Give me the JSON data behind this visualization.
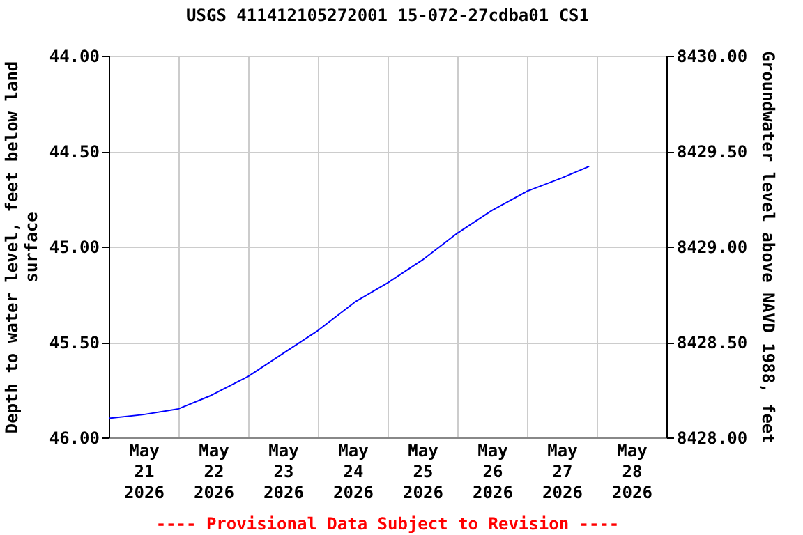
{
  "chart_data": {
    "type": "line",
    "title": "USGS 411412105272001 15-072-27cdba01 CS1",
    "ylabel": "Depth to water level, feet below land surface",
    "y2label": "Groundwater level above NAVD 1988, feet",
    "annotations": [
      "---- Provisional Data Subject to Revision ----"
    ],
    "xlim": [
      "2026-05-21T00:00",
      "2026-05-29T00:00"
    ],
    "xticks": [
      {
        "value": "2026-05-21T12:00",
        "label": "May\n21\n2026"
      },
      {
        "value": "2026-05-22T00:00",
        "label": null
      },
      {
        "value": "2026-05-22T12:00",
        "label": "May\n22\n2026"
      },
      {
        "value": "2026-05-23T00:00",
        "label": null
      },
      {
        "value": "2026-05-23T12:00",
        "label": "May\n23\n2026"
      },
      {
        "value": "2026-05-24T00:00",
        "label": null
      },
      {
        "value": "2026-05-24T12:00",
        "label": "May\n24\n2026"
      },
      {
        "value": "2026-05-25T00:00",
        "label": null
      },
      {
        "value": "2026-05-25T12:00",
        "label": "May\n25\n2026"
      },
      {
        "value": "2026-05-26T00:00",
        "label": null
      },
      {
        "value": "2026-05-26T12:00",
        "label": "May\n26\n2026"
      },
      {
        "value": "2026-05-27T00:00",
        "label": null
      },
      {
        "value": "2026-05-27T12:00",
        "label": "May\n27\n2026"
      },
      {
        "value": "2026-05-28T00:00",
        "label": null
      },
      {
        "value": "2026-05-28T12:00",
        "label": "May\n28\n2026"
      }
    ],
    "ylim": [
      46.0,
      44.0
    ],
    "yticks": [
      {
        "value": 44,
        "label": "44.00"
      },
      {
        "value": 44.5,
        "label": "44.50"
      },
      {
        "value": 45,
        "label": "45.00"
      },
      {
        "value": 45.5,
        "label": "45.50"
      },
      {
        "value": 46,
        "label": "46.00"
      }
    ],
    "y2lim": [
      8428,
      8430
    ],
    "y2ticks": [
      {
        "value": 8428,
        "label": "8428.00"
      },
      {
        "value": 8428.5,
        "label": "8428.50"
      },
      {
        "value": 8429,
        "label": "8429.00"
      },
      {
        "value": 8429.5,
        "label": "8429.50"
      },
      {
        "value": 8430,
        "label": "8430.00"
      }
    ],
    "grid": true,
    "series": [
      {
        "color": "#0000ff",
        "x": [
          "2026-05-21T00:00",
          "2026-05-21T12:00",
          "2026-05-22T00:00",
          "2026-05-22T11:12",
          "2026-05-23T00:00",
          "2026-05-23T12:00",
          "2026-05-24T00:00",
          "2026-05-24T12:48",
          "2026-05-25T00:00",
          "2026-05-25T12:00",
          "2026-05-26T00:00",
          "2026-05-26T12:00",
          "2026-05-27T00:00",
          "2026-05-27T12:00",
          "2026-05-27T21:24"
        ],
        "values": [
          45.9,
          45.88,
          45.85,
          45.78,
          45.68,
          45.56,
          45.44,
          45.29,
          45.19,
          45.07,
          44.93,
          44.81,
          44.71,
          44.64,
          44.58
        ]
      }
    ]
  }
}
